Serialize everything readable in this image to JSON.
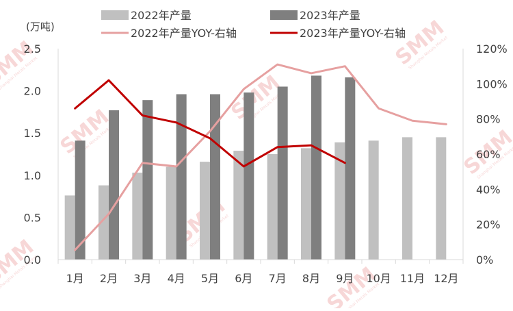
{
  "chart_data": {
    "type": "bar",
    "unit_label": "(万吨)",
    "categories": [
      "1月",
      "2月",
      "3月",
      "4月",
      "5月",
      "6月",
      "7月",
      "8月",
      "9月",
      "10月",
      "11月",
      "12月"
    ],
    "left_axis": {
      "ylim": [
        0,
        2.5
      ],
      "ticks": [
        "0.0",
        "0.5",
        "1.0",
        "1.5",
        "2.0",
        "2.5"
      ]
    },
    "right_axis": {
      "ylim": [
        0,
        120
      ],
      "ticks": [
        "0%",
        "20%",
        "40%",
        "60%",
        "80%",
        "100%",
        "120%"
      ]
    },
    "series": [
      {
        "name": "2022年产量",
        "kind": "bar",
        "axis": "left",
        "color": "#c0c0c0",
        "values": [
          0.76,
          0.88,
          1.03,
          1.1,
          1.16,
          1.29,
          1.25,
          1.32,
          1.39,
          1.41,
          1.45,
          1.45
        ]
      },
      {
        "name": "2023年产量",
        "kind": "bar",
        "axis": "left",
        "color": "#7f7f7f",
        "values": [
          1.41,
          1.77,
          1.89,
          1.96,
          1.96,
          1.98,
          2.05,
          2.18,
          2.16,
          null,
          null,
          null
        ]
      },
      {
        "name": "2022年产量YOY-右轴",
        "kind": "line",
        "axis": "right",
        "color": "#e6a0a0",
        "values": [
          5.5,
          26,
          55,
          53,
          73,
          97,
          111,
          106,
          110,
          86,
          79,
          77
        ]
      },
      {
        "name": "2023年产量YOY-右轴",
        "kind": "line",
        "axis": "right",
        "color": "#c00000",
        "values": [
          86,
          102,
          82,
          78,
          69,
          53,
          64,
          65,
          55,
          null,
          null,
          null
        ]
      }
    ],
    "grid": false,
    "legend_position": "top"
  },
  "watermark": {
    "text": "SMM",
    "subtext": "Shanghai Metals Market",
    "color": "#f2b8b8"
  }
}
